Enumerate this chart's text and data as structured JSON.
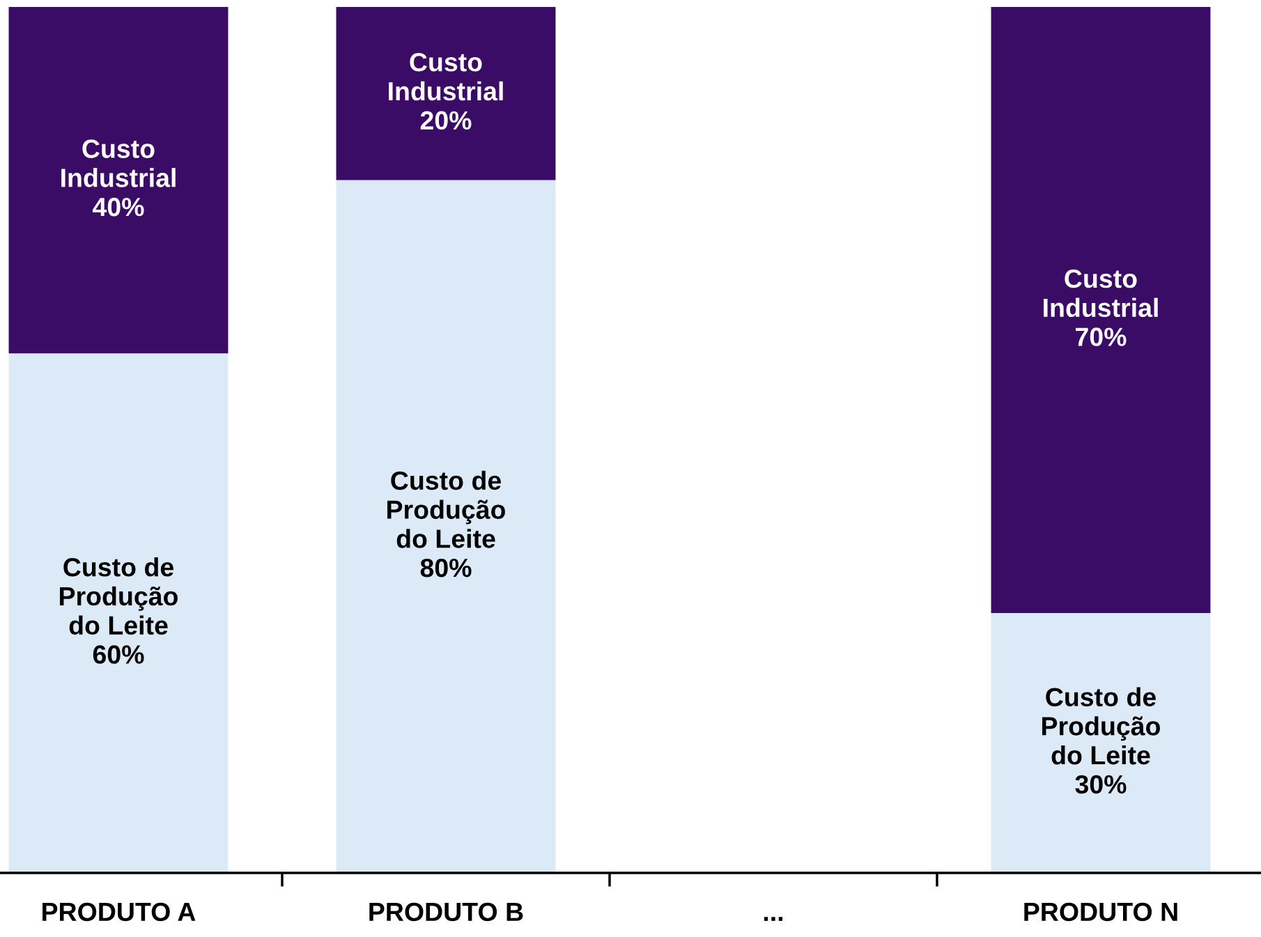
{
  "chart_data": {
    "type": "bar",
    "stacked": true,
    "categories": [
      "PRODUTO A",
      "PRODUTO B",
      "...",
      "PRODUTO N"
    ],
    "ylim": [
      0,
      100
    ],
    "tick_labels": "x",
    "grid": false,
    "legend": false,
    "series": [
      {
        "color": "#dce9f7",
        "values": [
          60,
          80,
          null,
          30
        ],
        "value_labels": [
          "Custo de\nProdução\ndo Leite\n60%",
          "Custo de\nProdução\ndo Leite\n80%",
          null,
          "Custo de\nProdução\ndo Leite\n30%"
        ]
      },
      {
        "color": "#3b0c66",
        "values": [
          40,
          20,
          null,
          70
        ],
        "value_labels": [
          "Custo\nIndustrial\n40%",
          "Custo\nIndustrial\n20%",
          null,
          "Custo\nIndustrial\n70%"
        ]
      }
    ]
  }
}
